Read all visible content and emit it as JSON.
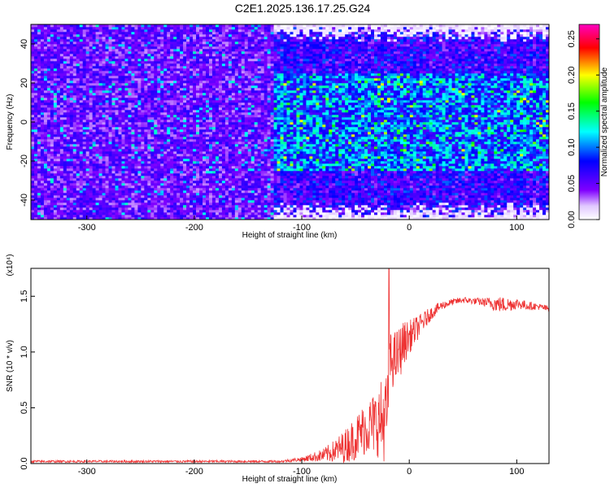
{
  "figure_title": "C2E1.2025.136.17.25.G24",
  "chart_data": [
    {
      "type": "heatmap",
      "xlabel": "Height of straight line (km)",
      "ylabel": "Frequency (Hz)",
      "xlim": [
        -352,
        130
      ],
      "ylim": [
        -50,
        50
      ],
      "xticks": [
        -300,
        -200,
        -100,
        0,
        100
      ],
      "yticks": [
        -40,
        -20,
        0,
        20,
        40
      ],
      "colorbar": {
        "label": "Normalized spectral amplitude",
        "range": [
          0,
          0.27
        ],
        "ticks": [
          "0.00",
          "0.05",
          "0.10",
          "0.15",
          "0.20",
          "0.25"
        ],
        "colormap": [
          "#ffffff",
          "#8000ff",
          "#0000ff",
          "#00ffff",
          "#00ff00",
          "#ffff00",
          "#ff0000",
          "#ff00ff"
        ]
      },
      "description_regions": [
        {
          "x_range": [
            -352,
            -125
          ],
          "freq_range": [
            -50,
            50
          ],
          "typical_amplitude": 0.05
        },
        {
          "x_range": [
            -125,
            130
          ],
          "freq_range": [
            -45,
            45
          ],
          "typical_amplitude": 0.08
        },
        {
          "x_range": [
            -125,
            130
          ],
          "freq_range": [
            -25,
            25
          ],
          "typical_amplitude": 0.1
        }
      ],
      "grid": false
    },
    {
      "type": "line",
      "xlabel": "Height of straight line (km)",
      "ylabel": "SNR (10 * v/v)",
      "yscale_label": "(x10⁴)",
      "xlim": [
        -352,
        130
      ],
      "ylim": [
        0,
        1.75
      ],
      "xticks": [
        -300,
        -200,
        -100,
        0,
        100
      ],
      "yticks": [
        "0.0",
        "0.5",
        "1.0",
        "1.5"
      ],
      "color": "#ee3333",
      "series": [
        {
          "x": [
            -352,
            -300,
            -250,
            -200,
            -150,
            -120,
            -110,
            -100,
            -90,
            -80,
            -70,
            -60,
            -50,
            -40,
            -30,
            -25,
            -20,
            -18,
            -15,
            -10,
            -5,
            0,
            10,
            20,
            30,
            40,
            50,
            60,
            70,
            80,
            90,
            100,
            110,
            120,
            130
          ],
          "values": [
            0.02,
            0.02,
            0.02,
            0.02,
            0.02,
            0.02,
            0.03,
            0.04,
            0.06,
            0.08,
            0.12,
            0.17,
            0.25,
            0.35,
            0.4,
            0.42,
            0.5,
            0.95,
            0.95,
            1.0,
            1.1,
            1.15,
            1.25,
            1.35,
            1.42,
            1.45,
            1.47,
            1.46,
            1.45,
            1.44,
            1.43,
            1.44,
            1.42,
            1.41,
            1.39
          ],
          "noise": [
            0.01,
            0.01,
            0.01,
            0.01,
            0.01,
            0.01,
            0.015,
            0.02,
            0.04,
            0.06,
            0.1,
            0.15,
            0.2,
            0.25,
            0.3,
            0.4,
            0.35,
            0.25,
            0.25,
            0.25,
            0.2,
            0.15,
            0.1,
            0.06,
            0.04,
            0.03,
            0.03,
            0.03,
            0.04,
            0.07,
            0.07,
            0.05,
            0.04,
            0.03,
            0.03
          ]
        }
      ],
      "peaks": [
        {
          "x": -19,
          "value": 1.75
        }
      ],
      "grid": false
    }
  ]
}
